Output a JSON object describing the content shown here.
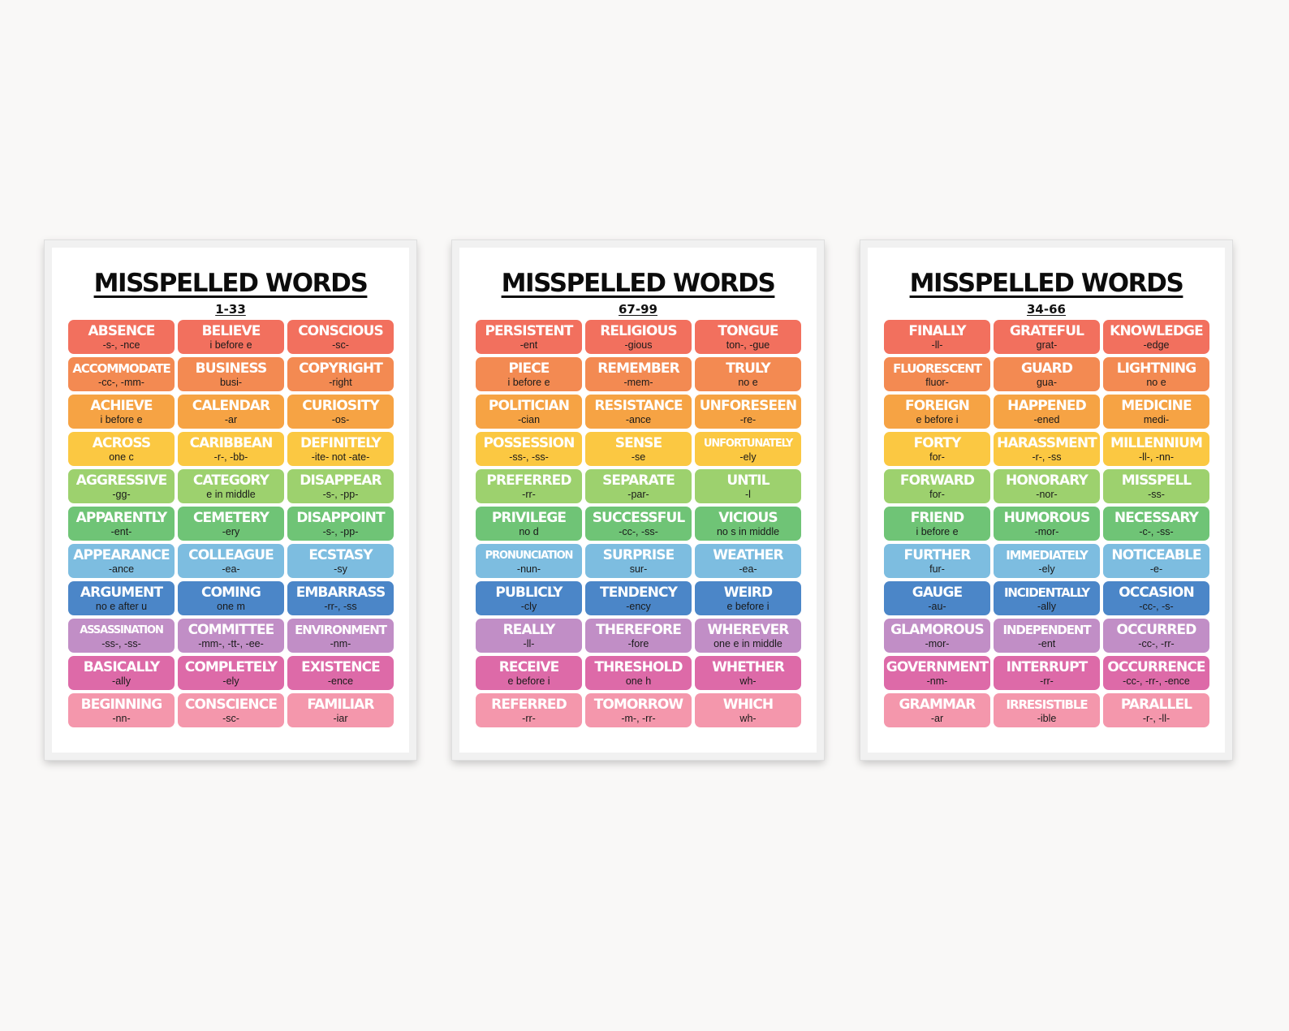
{
  "row_colors": [
    "#f2705e",
    "#f38a52",
    "#f6a344",
    "#fbc842",
    "#9dd16e",
    "#6fc476",
    "#7dbde0",
    "#4b86c8",
    "#c18ec6",
    "#dd6aa8",
    "#f497ac"
  ],
  "posters": [
    {
      "title": "MISSPELLED WORDS",
      "range": "1-33",
      "rows": [
        [
          {
            "word": "ABSENCE",
            "hint": "-s-, -nce"
          },
          {
            "word": "BELIEVE",
            "hint": "i before e"
          },
          {
            "word": "CONSCIOUS",
            "hint": "-sc-"
          }
        ],
        [
          {
            "word": "ACCOMMODATE",
            "hint": "-cc-, -mm-"
          },
          {
            "word": "BUSINESS",
            "hint": "busi-"
          },
          {
            "word": "COPYRIGHT",
            "hint": "-right"
          }
        ],
        [
          {
            "word": "ACHIEVE",
            "hint": "i before e"
          },
          {
            "word": "CALENDAR",
            "hint": "-ar"
          },
          {
            "word": "CURIOSITY",
            "hint": "-os-"
          }
        ],
        [
          {
            "word": "ACROSS",
            "hint": "one c"
          },
          {
            "word": "CARIBBEAN",
            "hint": "-r-, -bb-"
          },
          {
            "word": "DEFINITELY",
            "hint": "-ite- not -ate-"
          }
        ],
        [
          {
            "word": "AGGRESSIVE",
            "hint": "-gg-"
          },
          {
            "word": "CATEGORY",
            "hint": "e in middle"
          },
          {
            "word": "DISAPPEAR",
            "hint": "-s-, -pp-"
          }
        ],
        [
          {
            "word": "APPARENTLY",
            "hint": "-ent-"
          },
          {
            "word": "CEMETERY",
            "hint": "-ery"
          },
          {
            "word": "DISAPPOINT",
            "hint": "-s-, -pp-"
          }
        ],
        [
          {
            "word": "APPEARANCE",
            "hint": "-ance"
          },
          {
            "word": "COLLEAGUE",
            "hint": "-ea-"
          },
          {
            "word": "ECSTASY",
            "hint": "-sy"
          }
        ],
        [
          {
            "word": "ARGUMENT",
            "hint": "no e after u"
          },
          {
            "word": "COMING",
            "hint": "one m"
          },
          {
            "word": "EMBARRASS",
            "hint": "-rr-, -ss"
          }
        ],
        [
          {
            "word": "ASSASSINATION",
            "hint": "-ss-, -ss-"
          },
          {
            "word": "COMMITTEE",
            "hint": "-mm-, -tt-, -ee-"
          },
          {
            "word": "ENVIRONMENT",
            "hint": "-nm-"
          }
        ],
        [
          {
            "word": "BASICALLY",
            "hint": "-ally"
          },
          {
            "word": "COMPLETELY",
            "hint": "-ely"
          },
          {
            "word": "EXISTENCE",
            "hint": "-ence"
          }
        ],
        [
          {
            "word": "BEGINNING",
            "hint": "-nn-"
          },
          {
            "word": "CONSCIENCE",
            "hint": "-sc-"
          },
          {
            "word": "FAMILIAR",
            "hint": "-iar"
          }
        ]
      ]
    },
    {
      "title": "MISSPELLED WORDS",
      "range": "67-99",
      "rows": [
        [
          {
            "word": "PERSISTENT",
            "hint": "-ent"
          },
          {
            "word": "RELIGIOUS",
            "hint": "-gious"
          },
          {
            "word": "TONGUE",
            "hint": "ton-, -gue"
          }
        ],
        [
          {
            "word": "PIECE",
            "hint": "i before e"
          },
          {
            "word": "REMEMBER",
            "hint": "-mem-"
          },
          {
            "word": "TRULY",
            "hint": "no e"
          }
        ],
        [
          {
            "word": "POLITICIAN",
            "hint": "-cian"
          },
          {
            "word": "RESISTANCE",
            "hint": "-ance"
          },
          {
            "word": "UNFORESEEN",
            "hint": "-re-"
          }
        ],
        [
          {
            "word": "POSSESSION",
            "hint": "-ss-, -ss-"
          },
          {
            "word": "SENSE",
            "hint": "-se"
          },
          {
            "word": "UNFORTUNATELY",
            "hint": "-ely"
          }
        ],
        [
          {
            "word": "PREFERRED",
            "hint": "-rr-"
          },
          {
            "word": "SEPARATE",
            "hint": "-par-"
          },
          {
            "word": "UNTIL",
            "hint": "-l"
          }
        ],
        [
          {
            "word": "PRIVILEGE",
            "hint": "no d"
          },
          {
            "word": "SUCCESSFUL",
            "hint": "-cc-, -ss-"
          },
          {
            "word": "VICIOUS",
            "hint": "no s in middle"
          }
        ],
        [
          {
            "word": "PRONUNCIATION",
            "hint": "-nun-"
          },
          {
            "word": "SURPRISE",
            "hint": "sur-"
          },
          {
            "word": "WEATHER",
            "hint": "-ea-"
          }
        ],
        [
          {
            "word": "PUBLICLY",
            "hint": "-cly"
          },
          {
            "word": "TENDENCY",
            "hint": "-ency"
          },
          {
            "word": "WEIRD",
            "hint": "e before i"
          }
        ],
        [
          {
            "word": "REALLY",
            "hint": "-ll-"
          },
          {
            "word": "THEREFORE",
            "hint": "-fore"
          },
          {
            "word": "WHEREVER",
            "hint": "one e in middle"
          }
        ],
        [
          {
            "word": "RECEIVE",
            "hint": "e before i"
          },
          {
            "word": "THRESHOLD",
            "hint": "one h"
          },
          {
            "word": "WHETHER",
            "hint": "wh-"
          }
        ],
        [
          {
            "word": "REFERRED",
            "hint": "-rr-"
          },
          {
            "word": "TOMORROW",
            "hint": "-m-, -rr-"
          },
          {
            "word": "WHICH",
            "hint": "wh-"
          }
        ]
      ]
    },
    {
      "title": "MISSPELLED WORDS",
      "range": "34-66",
      "rows": [
        [
          {
            "word": "FINALLY",
            "hint": "-ll-"
          },
          {
            "word": "GRATEFUL",
            "hint": "grat-"
          },
          {
            "word": "KNOWLEDGE",
            "hint": "-edge"
          }
        ],
        [
          {
            "word": "FLUORESCENT",
            "hint": "fluor-"
          },
          {
            "word": "GUARD",
            "hint": "gua-"
          },
          {
            "word": "LIGHTNING",
            "hint": "no e"
          }
        ],
        [
          {
            "word": "FOREIGN",
            "hint": "e before i"
          },
          {
            "word": "HAPPENED",
            "hint": "-ened"
          },
          {
            "word": "MEDICINE",
            "hint": "medi-"
          }
        ],
        [
          {
            "word": "FORTY",
            "hint": "for-"
          },
          {
            "word": "HARASSMENT",
            "hint": "-r-, -ss"
          },
          {
            "word": "MILLENNIUM",
            "hint": "-ll-, -nn-"
          }
        ],
        [
          {
            "word": "FORWARD",
            "hint": "for-"
          },
          {
            "word": "HONORARY",
            "hint": "-nor-"
          },
          {
            "word": "MISSPELL",
            "hint": "-ss-"
          }
        ],
        [
          {
            "word": "FRIEND",
            "hint": "i before e"
          },
          {
            "word": "HUMOROUS",
            "hint": "-mor-"
          },
          {
            "word": "NECESSARY",
            "hint": "-c-, -ss-"
          }
        ],
        [
          {
            "word": "FURTHER",
            "hint": "fur-"
          },
          {
            "word": "IMMEDIATELY",
            "hint": "-ely"
          },
          {
            "word": "NOTICEABLE",
            "hint": "-e-"
          }
        ],
        [
          {
            "word": "GAUGE",
            "hint": "-au-"
          },
          {
            "word": "INCIDENTALLY",
            "hint": "-ally"
          },
          {
            "word": "OCCASION",
            "hint": "-cc-, -s-"
          }
        ],
        [
          {
            "word": "GLAMOROUS",
            "hint": "-mor-"
          },
          {
            "word": "INDEPENDENT",
            "hint": "-ent"
          },
          {
            "word": "OCCURRED",
            "hint": "-cc-, -rr-"
          }
        ],
        [
          {
            "word": "GOVERNMENT",
            "hint": "-nm-"
          },
          {
            "word": "INTERRUPT",
            "hint": "-rr-"
          },
          {
            "word": "OCCURRENCE",
            "hint": "-cc-, -rr-, -ence"
          }
        ],
        [
          {
            "word": "GRAMMAR",
            "hint": "-ar"
          },
          {
            "word": "IRRESISTIBLE",
            "hint": "-ible"
          },
          {
            "word": "PARALLEL",
            "hint": "-r-, -ll-"
          }
        ]
      ]
    }
  ]
}
